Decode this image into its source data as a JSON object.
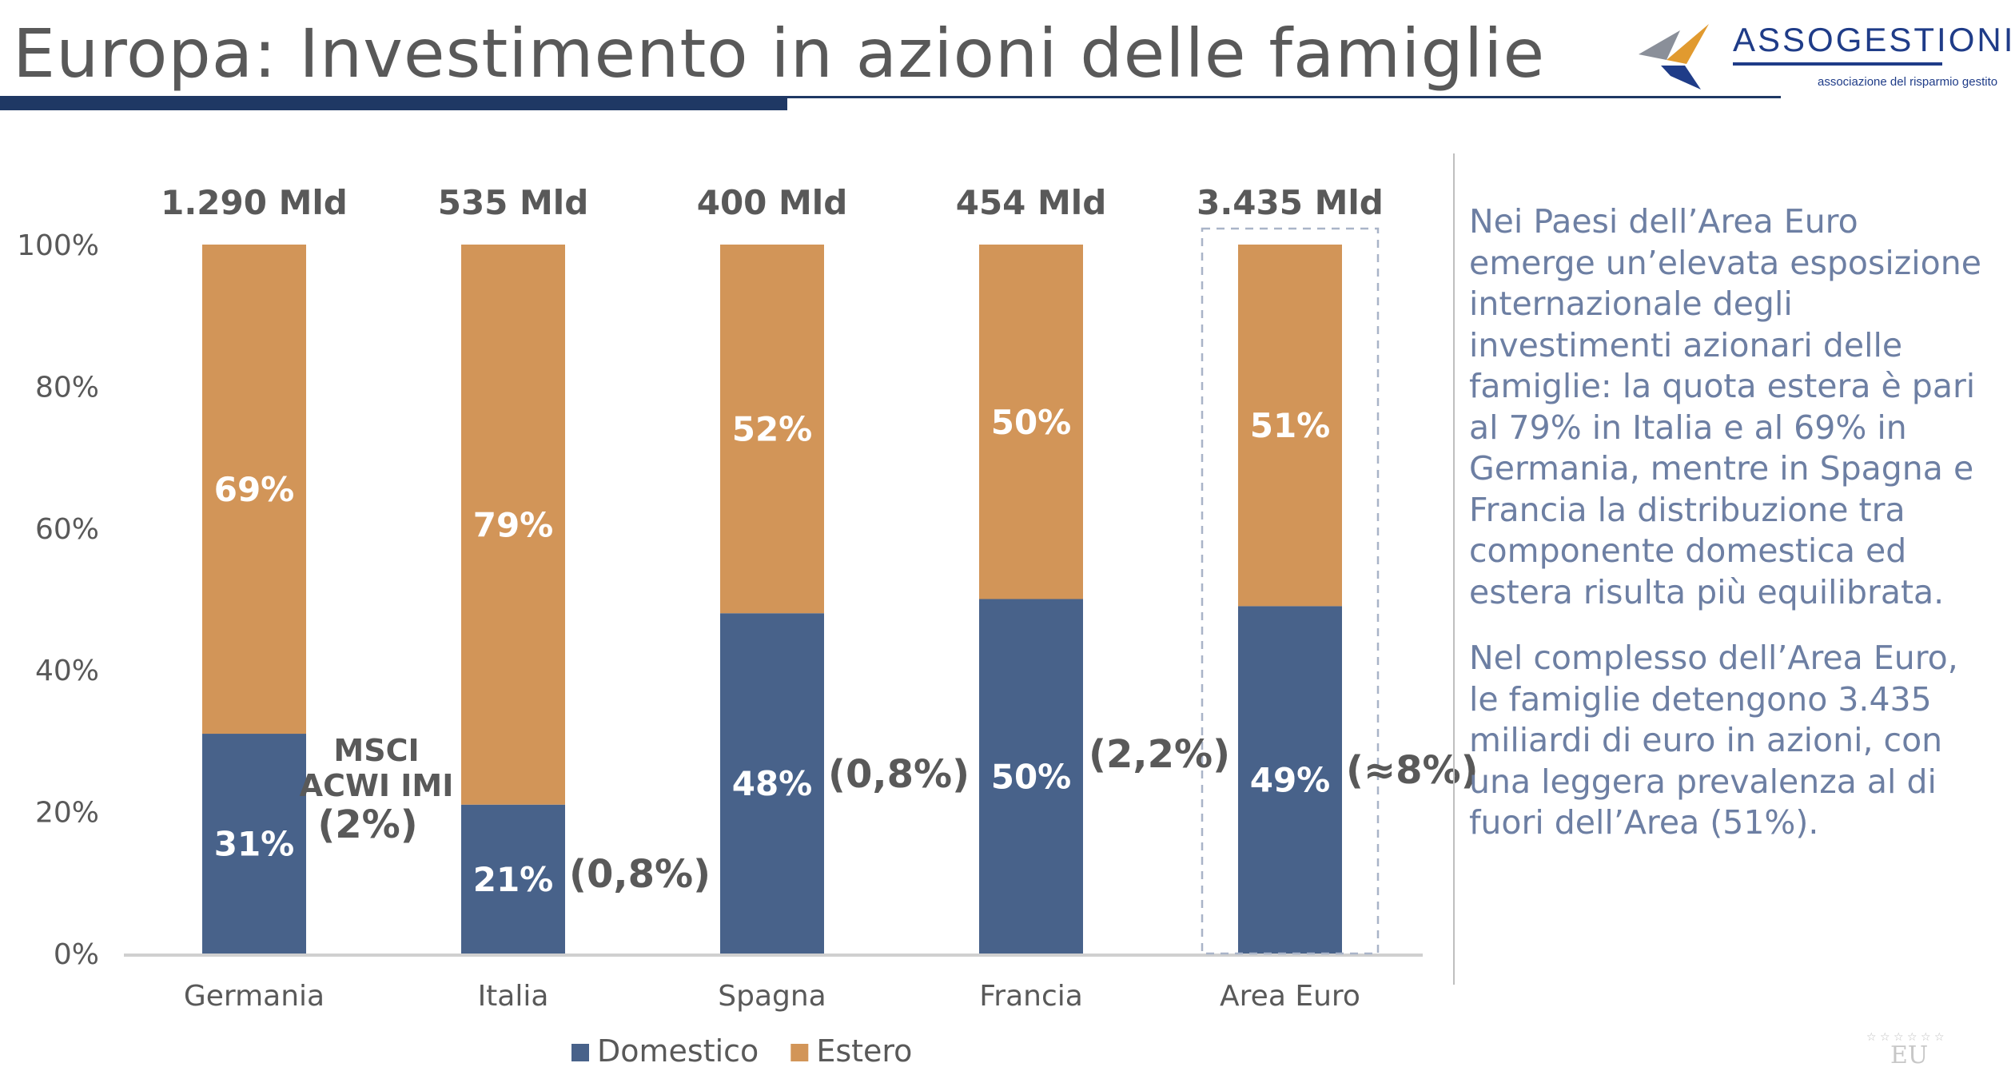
{
  "header": {
    "title": "Europa: Investimento in azioni delle famiglie",
    "logo_name": "ASSOGESTIONI",
    "logo_tagline": "associazione del risparmio gestito"
  },
  "chart_data": {
    "type": "bar",
    "stacked": true,
    "categories": [
      "Germania",
      "Italia",
      "Spagna",
      "Francia",
      "Area Euro"
    ],
    "totals": [
      "1.290 Mld",
      "535 Mld",
      "400 Mld",
      "454 Mld",
      "3.435 Mld"
    ],
    "series": [
      {
        "name": "Domestico",
        "color": "#48628a",
        "values": [
          31,
          21,
          48,
          50,
          49
        ]
      },
      {
        "name": "Estero",
        "color": "#d29558",
        "values": [
          69,
          79,
          52,
          50,
          51
        ]
      }
    ],
    "msci_label": [
      "MSCI",
      "ACWI IMI"
    ],
    "annotations": [
      "(2%)",
      "(0,8%)",
      "(0,8%)",
      "(2,2%)",
      "(≈8%)"
    ],
    "highlighted_category": "Area Euro",
    "yticks": [
      "0%",
      "20%",
      "40%",
      "60%",
      "80%",
      "100%"
    ],
    "ylim": [
      0,
      100
    ],
    "legend_position": "bottom"
  },
  "side_text": {
    "paragraph1": "Nei Paesi dell’Area Euro emerge un’elevata esposizione internazionale degli investimenti azionari delle famiglie: la quota estera è pari al 79% in Italia e al 69% in Germania, mentre in Spagna e Francia la distribuzione tra componente domestica ed estera risulta più equilibrata.",
    "paragraph2": "Nel complesso dell’Area Euro, le famiglie detengono 3.435 miliardi di euro in azioni, con una leggera prevalenza al di fuori dell’Area (51%)."
  },
  "footer": {
    "badge": "EU"
  }
}
